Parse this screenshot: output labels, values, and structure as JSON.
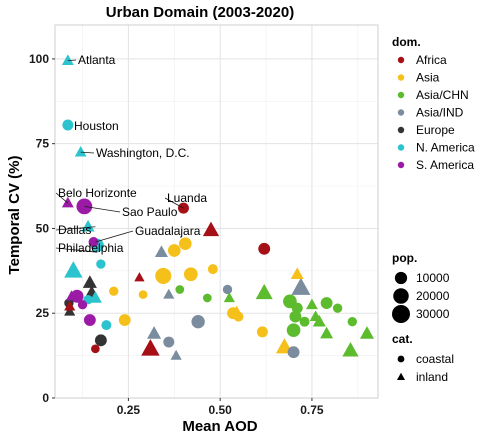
{
  "chart_data": {
    "type": "scatter",
    "title": "Urban Domain (2003-2020)",
    "xlabel": "Mean AOD",
    "ylabel": "Temporal CV (%)",
    "xlim": [
      0.05,
      0.93
    ],
    "ylim": [
      0,
      110
    ],
    "xticks": [
      0.25,
      0.5,
      0.75
    ],
    "xtick_labels": [
      "0.25",
      "0.50",
      "0.75"
    ],
    "yticks": [
      0,
      25,
      50,
      75,
      100
    ],
    "ytick_labels": [
      "0",
      "25",
      "50",
      "75",
      "100"
    ],
    "grid": true,
    "legend": {
      "placement": "right",
      "domain": {
        "title": "dom.",
        "entries": [
          {
            "label": "Africa",
            "key": "Africa",
            "color": "#A50F15"
          },
          {
            "label": "Asia",
            "key": "Asia",
            "color": "#F5C01A"
          },
          {
            "label": "Asia/CHN",
            "key": "Asia/CHN",
            "color": "#5DBB2E"
          },
          {
            "label": "Asia/IND",
            "key": "Asia/IND",
            "color": "#7A8C9E"
          },
          {
            "label": "Europe",
            "key": "Europe",
            "color": "#333333"
          },
          {
            "label": "N. America",
            "key": "N. America",
            "color": "#2BC4CE"
          },
          {
            "label": "S. America",
            "key": "S. America",
            "color": "#9B1AA6"
          }
        ]
      },
      "population": {
        "title": "pop.",
        "entries": [
          {
            "label": "10000",
            "value": 10000
          },
          {
            "label": "20000",
            "value": 20000
          },
          {
            "label": "30000",
            "value": 30000
          }
        ]
      },
      "category": {
        "title": "cat.",
        "entries": [
          {
            "label": "coastal",
            "shape": "circle"
          },
          {
            "label": "inland",
            "shape": "triangle"
          }
        ]
      }
    },
    "annotations": [
      {
        "text": "Atlanta",
        "x": 0.085,
        "y": 99.5
      },
      {
        "text": "Houston",
        "x": 0.085,
        "y": 80.5
      },
      {
        "text": "Washington, D.C.",
        "x": 0.12,
        "y": 72.5
      },
      {
        "text": "Luanda",
        "x": 0.4,
        "y": 56.0
      },
      {
        "text": "Belo Horizonte",
        "x": 0.085,
        "y": 57.5
      },
      {
        "text": "Sao Paulo",
        "x": 0.13,
        "y": 56.5
      },
      {
        "text": "Dallas",
        "x": 0.16,
        "y": 50.5
      },
      {
        "text": "Guadalajara",
        "x": 0.16,
        "y": 46.0
      },
      {
        "text": "Philadelphia",
        "x": 0.165,
        "y": 43.0
      }
    ],
    "points": [
      {
        "x": 0.085,
        "y": 99.5,
        "dom": "N. America",
        "cat": "inland",
        "pop": 5000
      },
      {
        "x": 0.085,
        "y": 80.5,
        "dom": "N. America",
        "cat": "coastal",
        "pop": 7000
      },
      {
        "x": 0.12,
        "y": 72.5,
        "dom": "N. America",
        "cat": "inland",
        "pop": 5000
      },
      {
        "x": 0.4,
        "y": 56.0,
        "dom": "Africa",
        "cat": "coastal",
        "pop": 7000
      },
      {
        "x": 0.085,
        "y": 57.5,
        "dom": "S. America",
        "cat": "inland",
        "pop": 5000
      },
      {
        "x": 0.13,
        "y": 56.5,
        "dom": "S. America",
        "cat": "coastal",
        "pop": 21000
      },
      {
        "x": 0.14,
        "y": 50.5,
        "dom": "N. America",
        "cat": "inland",
        "pop": 7000
      },
      {
        "x": 0.155,
        "y": 46.0,
        "dom": "S. America",
        "cat": "coastal",
        "pop": 5000
      },
      {
        "x": 0.165,
        "y": 45.0,
        "dom": "N. America",
        "cat": "coastal",
        "pop": 13000
      },
      {
        "x": 0.175,
        "y": 39.5,
        "dom": "N. America",
        "cat": "coastal",
        "pop": 4000
      },
      {
        "x": 0.1,
        "y": 37.5,
        "dom": "N. America",
        "cat": "inland",
        "pop": 20000
      },
      {
        "x": 0.145,
        "y": 34.0,
        "dom": "Europe",
        "cat": "inland",
        "pop": 9000
      },
      {
        "x": 0.15,
        "y": 31.0,
        "dom": "Europe",
        "cat": "inland",
        "pop": 9000
      },
      {
        "x": 0.16,
        "y": 29.5,
        "dom": "N. America",
        "cat": "inland",
        "pop": 7000
      },
      {
        "x": 0.11,
        "y": 30.0,
        "dom": "S. America",
        "cat": "coastal",
        "pop": 12000
      },
      {
        "x": 0.14,
        "y": 29.0,
        "dom": "N. America",
        "cat": "coastal",
        "pop": 4000
      },
      {
        "x": 0.088,
        "y": 28.0,
        "dom": "Europe",
        "cat": "coastal",
        "pop": 4000
      },
      {
        "x": 0.09,
        "y": 25.5,
        "dom": "Europe",
        "cat": "inland",
        "pop": 4000
      },
      {
        "x": 0.125,
        "y": 27.5,
        "dom": "S. America",
        "cat": "coastal",
        "pop": 4000
      },
      {
        "x": 0.145,
        "y": 23.0,
        "dom": "S. America",
        "cat": "coastal",
        "pop": 9000
      },
      {
        "x": 0.19,
        "y": 21.5,
        "dom": "N. America",
        "cat": "coastal",
        "pop": 5000
      },
      {
        "x": 0.175,
        "y": 17.0,
        "dom": "Europe",
        "cat": "coastal",
        "pop": 9000
      },
      {
        "x": 0.16,
        "y": 14.5,
        "dom": "Africa",
        "cat": "coastal",
        "pop": 3000
      },
      {
        "x": 0.21,
        "y": 31.5,
        "dom": "Asia",
        "cat": "coastal",
        "pop": 4000
      },
      {
        "x": 0.24,
        "y": 23.0,
        "dom": "Asia",
        "cat": "coastal",
        "pop": 9000
      },
      {
        "x": 0.28,
        "y": 35.5,
        "dom": "Africa",
        "cat": "inland",
        "pop": 3000
      },
      {
        "x": 0.29,
        "y": 30.5,
        "dom": "Asia",
        "cat": "coastal",
        "pop": 3000
      },
      {
        "x": 0.31,
        "y": 14.5,
        "dom": "Africa",
        "cat": "inland",
        "pop": 20000
      },
      {
        "x": 0.32,
        "y": 19.0,
        "dom": "Asia/IND",
        "cat": "inland",
        "pop": 9000
      },
      {
        "x": 0.34,
        "y": 43.0,
        "dom": "Asia/IND",
        "cat": "inland",
        "pop": 7000
      },
      {
        "x": 0.345,
        "y": 36.0,
        "dom": "Asia",
        "cat": "coastal",
        "pop": 22000
      },
      {
        "x": 0.36,
        "y": 30.5,
        "dom": "Asia/IND",
        "cat": "inland",
        "pop": 4000
      },
      {
        "x": 0.375,
        "y": 43.5,
        "dom": "Asia",
        "cat": "coastal",
        "pop": 11000
      },
      {
        "x": 0.38,
        "y": 12.5,
        "dom": "Asia/IND",
        "cat": "inland",
        "pop": 4000
      },
      {
        "x": 0.39,
        "y": 32.0,
        "dom": "Asia/CHN",
        "cat": "coastal",
        "pop": 3000
      },
      {
        "x": 0.36,
        "y": 16.5,
        "dom": "Asia/IND",
        "cat": "coastal",
        "pop": 7000
      },
      {
        "x": 0.405,
        "y": 45.5,
        "dom": "Asia",
        "cat": "coastal",
        "pop": 11000
      },
      {
        "x": 0.42,
        "y": 36.5,
        "dom": "Asia",
        "cat": "coastal",
        "pop": 14000
      },
      {
        "x": 0.44,
        "y": 22.5,
        "dom": "Asia/IND",
        "cat": "coastal",
        "pop": 13000
      },
      {
        "x": 0.465,
        "y": 29.5,
        "dom": "Asia/CHN",
        "cat": "coastal",
        "pop": 3000
      },
      {
        "x": 0.475,
        "y": 49.5,
        "dom": "Africa",
        "cat": "inland",
        "pop": 14000
      },
      {
        "x": 0.48,
        "y": 38.0,
        "dom": "Asia",
        "cat": "coastal",
        "pop": 5000
      },
      {
        "x": 0.52,
        "y": 32.0,
        "dom": "Asia/IND",
        "cat": "coastal",
        "pop": 4000
      },
      {
        "x": 0.525,
        "y": 29.5,
        "dom": "Asia/CHN",
        "cat": "inland",
        "pop": 4000
      },
      {
        "x": 0.535,
        "y": 25.0,
        "dom": "Asia",
        "cat": "coastal",
        "pop": 9000
      },
      {
        "x": 0.55,
        "y": 24.0,
        "dom": "Asia",
        "cat": "coastal",
        "pop": 5000
      },
      {
        "x": 0.545,
        "y": 25.5,
        "dom": "Asia",
        "cat": "inland",
        "pop": 4000
      },
      {
        "x": 0.62,
        "y": 44.0,
        "dom": "Africa",
        "cat": "coastal",
        "pop": 9000
      },
      {
        "x": 0.615,
        "y": 19.5,
        "dom": "Asia",
        "cat": "coastal",
        "pop": 7000
      },
      {
        "x": 0.62,
        "y": 31.0,
        "dom": "Asia/CHN",
        "cat": "inland",
        "pop": 16000
      },
      {
        "x": 0.675,
        "y": 15.0,
        "dom": "Asia",
        "cat": "inland",
        "pop": 16000
      },
      {
        "x": 0.69,
        "y": 28.5,
        "dom": "Asia/CHN",
        "cat": "coastal",
        "pop": 14000
      },
      {
        "x": 0.7,
        "y": 20.0,
        "dom": "Asia/CHN",
        "cat": "coastal",
        "pop": 14000
      },
      {
        "x": 0.705,
        "y": 24.0,
        "dom": "Asia/CHN",
        "cat": "coastal",
        "pop": 9000
      },
      {
        "x": 0.71,
        "y": 36.5,
        "dom": "Asia",
        "cat": "inland",
        "pop": 7000
      },
      {
        "x": 0.72,
        "y": 32.5,
        "dom": "Asia/IND",
        "cat": "inland",
        "pop": 22000
      },
      {
        "x": 0.7,
        "y": 13.5,
        "dom": "Asia/IND",
        "cat": "coastal",
        "pop": 9000
      },
      {
        "x": 0.71,
        "y": 26.5,
        "dom": "Asia/CHN",
        "cat": "coastal",
        "pop": 7000
      },
      {
        "x": 0.73,
        "y": 22.5,
        "dom": "Asia/CHN",
        "cat": "coastal",
        "pop": 5000
      },
      {
        "x": 0.75,
        "y": 27.5,
        "dom": "Asia/CHN",
        "cat": "inland",
        "pop": 5000
      },
      {
        "x": 0.76,
        "y": 24.0,
        "dom": "Asia/CHN",
        "cat": "inland",
        "pop": 5000
      },
      {
        "x": 0.77,
        "y": 22.5,
        "dom": "Asia/CHN",
        "cat": "inland",
        "pop": 7000
      },
      {
        "x": 0.79,
        "y": 28.0,
        "dom": "Asia/CHN",
        "cat": "coastal",
        "pop": 9000
      },
      {
        "x": 0.79,
        "y": 19.0,
        "dom": "Asia/CHN",
        "cat": "inland",
        "pop": 7000
      },
      {
        "x": 0.82,
        "y": 26.5,
        "dom": "Asia/CHN",
        "cat": "coastal",
        "pop": 4000
      },
      {
        "x": 0.855,
        "y": 14.0,
        "dom": "Asia/CHN",
        "cat": "inland",
        "pop": 14000
      },
      {
        "x": 0.86,
        "y": 22.5,
        "dom": "Asia/CHN",
        "cat": "coastal",
        "pop": 4000
      },
      {
        "x": 0.9,
        "y": 19.0,
        "dom": "Asia/CHN",
        "cat": "inland",
        "pop": 9000
      },
      {
        "x": 0.09,
        "y": 27.0,
        "dom": "Africa",
        "cat": "inland",
        "pop": 4000
      },
      {
        "x": 0.095,
        "y": 30.0,
        "dom": "S. America",
        "cat": "inland",
        "pop": 4000
      }
    ]
  }
}
